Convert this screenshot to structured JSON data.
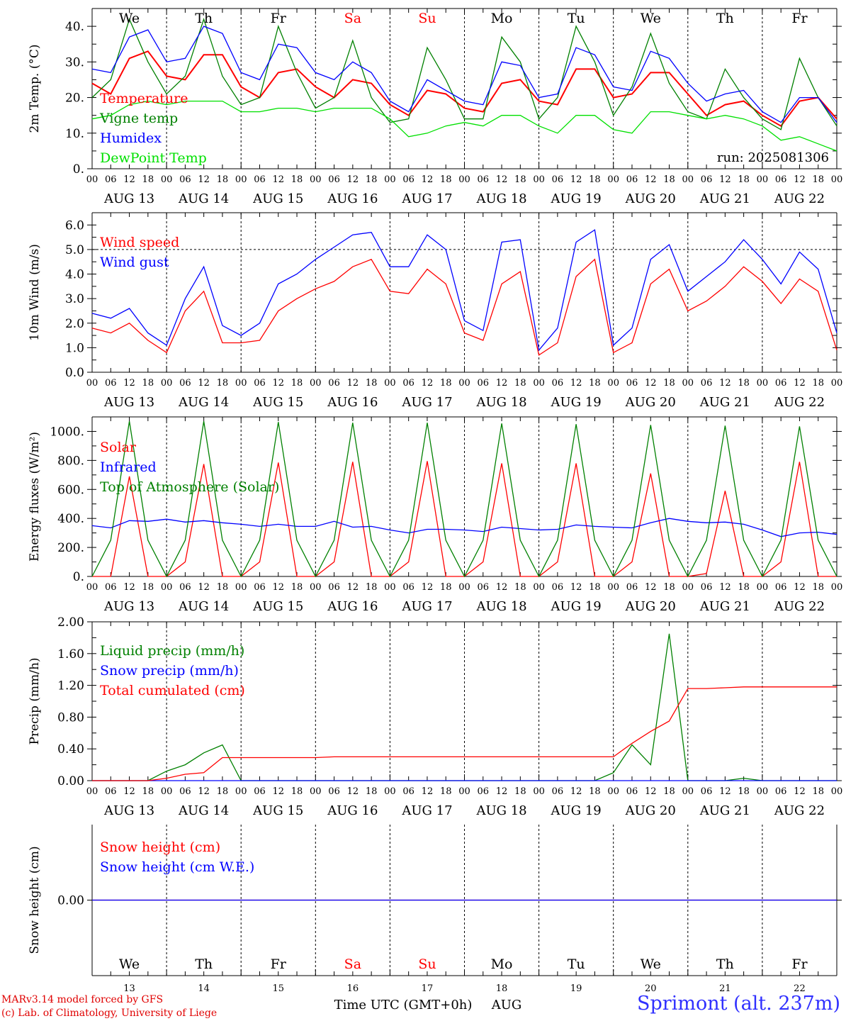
{
  "footer": {
    "model": "MARv3.14 model forced by GFS",
    "lab": "(c) Lab. of Climatology, University of Liege",
    "xtitle": "Time UTC (GMT+0h)",
    "month": "AUG",
    "station": "Sprimont (alt. 237m)"
  },
  "colors": {
    "red": "#ff0000",
    "green": "#008000",
    "blue": "#0000ff",
    "lime": "#00e000",
    "grid": "#000000"
  },
  "chart_data": [
    {
      "type": "line",
      "ylabel": "2m Temp. (°C)",
      "ylim": [
        0,
        45
      ],
      "yticks": [
        "0.",
        "10.",
        "20.",
        "30.",
        "40."
      ],
      "ytick_values": [
        0,
        10,
        20,
        30,
        40
      ],
      "annotation": "run: 2025081306",
      "day_names": [
        "We",
        "Th",
        "Fr",
        "Sa",
        "Su",
        "Mo",
        "Tu",
        "We",
        "Th",
        "Fr"
      ],
      "day_name_colors": [
        "#000000",
        "#000000",
        "#000000",
        "#ff0000",
        "#ff0000",
        "#000000",
        "#000000",
        "#000000",
        "#000000",
        "#000000"
      ],
      "x_hours": [
        0,
        6,
        12,
        18,
        24,
        30,
        36,
        42,
        48,
        54,
        60,
        66,
        72,
        78,
        84,
        90,
        96,
        102,
        108,
        114,
        120,
        126,
        132,
        138,
        144,
        150,
        156,
        162,
        168,
        174,
        180,
        186,
        192,
        198,
        204,
        210,
        216,
        222,
        228,
        234,
        240
      ],
      "series": [
        {
          "name": "Temperature",
          "color": "#ff0000",
          "values": [
            24,
            21,
            31,
            33,
            26,
            25,
            32,
            32,
            23,
            20,
            27,
            28,
            23,
            20,
            25,
            24,
            18,
            15,
            22,
            21,
            17,
            16,
            24,
            25,
            19,
            18,
            28,
            28,
            20,
            21,
            27,
            27,
            21,
            15,
            18,
            19,
            15,
            12,
            19,
            20,
            14
          ]
        },
        {
          "name": "Vigne temp",
          "color": "#008000",
          "values": [
            20,
            25,
            42,
            30,
            21,
            26,
            42,
            26,
            18,
            20,
            40,
            27,
            17,
            20,
            36,
            20,
            13,
            14,
            34,
            25,
            14,
            14,
            37,
            30,
            14,
            20,
            40,
            30,
            15,
            23,
            38,
            24,
            16,
            14,
            28,
            20,
            14,
            11,
            31,
            20,
            12
          ]
        },
        {
          "name": "Humidex",
          "color": "#0000ff",
          "values": [
            28,
            27,
            37,
            39,
            30,
            31,
            40,
            38,
            27,
            25,
            35,
            34,
            27,
            25,
            30,
            27,
            19,
            16,
            25,
            22,
            19,
            18,
            30,
            29,
            20,
            21,
            34,
            32,
            23,
            22,
            33,
            31,
            24,
            19,
            21,
            22,
            16,
            13,
            20,
            20,
            13
          ]
        },
        {
          "name": "DewPoint Temp",
          "color": "#00e000",
          "values": [
            14,
            15,
            18,
            19,
            18,
            19,
            19,
            19,
            16,
            16,
            17,
            17,
            16,
            17,
            17,
            17,
            14,
            9,
            10,
            12,
            13,
            12,
            15,
            15,
            12,
            10,
            15,
            15,
            11,
            10,
            16,
            16,
            15,
            14,
            15,
            14,
            12,
            8,
            9,
            7,
            5
          ]
        }
      ]
    },
    {
      "type": "line",
      "ylabel": "10m Wind (m/s)",
      "ylim": [
        0,
        6.5
      ],
      "yticks": [
        "0.0",
        "1.0",
        "2.0",
        "3.0",
        "4.0",
        "5.0",
        "6.0"
      ],
      "ytick_values": [
        0,
        1,
        2,
        3,
        4,
        5,
        6
      ],
      "reference_line": 5.0,
      "x_hours": [
        0,
        6,
        12,
        18,
        24,
        30,
        36,
        42,
        48,
        54,
        60,
        66,
        72,
        78,
        84,
        90,
        96,
        102,
        108,
        114,
        120,
        126,
        132,
        138,
        144,
        150,
        156,
        162,
        168,
        174,
        180,
        186,
        192,
        198,
        204,
        210,
        216,
        222,
        228,
        234,
        240
      ],
      "series": [
        {
          "name": "Wind speed",
          "color": "#ff0000",
          "values": [
            1.8,
            1.6,
            2.0,
            1.3,
            0.8,
            2.5,
            3.3,
            1.2,
            1.2,
            1.3,
            2.5,
            3.0,
            3.4,
            3.7,
            4.3,
            4.6,
            3.3,
            3.2,
            4.2,
            3.6,
            1.6,
            1.3,
            3.6,
            4.1,
            0.7,
            1.2,
            3.9,
            4.6,
            0.8,
            1.2,
            3.6,
            4.2,
            2.5,
            2.9,
            3.5,
            4.3,
            3.7,
            2.8,
            3.8,
            3.3,
            0.9
          ]
        },
        {
          "name": "Wind gust",
          "color": "#0000ff",
          "values": [
            2.4,
            2.2,
            2.6,
            1.6,
            1.1,
            3.0,
            4.3,
            1.9,
            1.5,
            2.0,
            3.6,
            4.0,
            4.6,
            5.1,
            5.6,
            5.7,
            4.3,
            4.3,
            5.6,
            5.0,
            2.1,
            1.7,
            5.3,
            5.4,
            0.9,
            1.8,
            5.3,
            5.8,
            1.1,
            1.8,
            4.6,
            5.2,
            3.3,
            3.9,
            4.5,
            5.4,
            4.6,
            3.6,
            4.9,
            4.2,
            1.6
          ]
        }
      ]
    },
    {
      "type": "line",
      "ylabel": "Energy fluxes (W/m²)",
      "ylim": [
        0,
        1100
      ],
      "yticks": [
        "0.",
        "200.",
        "400.",
        "600.",
        "800.",
        "1000."
      ],
      "ytick_values": [
        0,
        200,
        400,
        600,
        800,
        1000
      ],
      "x_hours": [
        0,
        6,
        12,
        18,
        24,
        30,
        36,
        42,
        48,
        54,
        60,
        66,
        72,
        78,
        84,
        90,
        96,
        102,
        108,
        114,
        120,
        126,
        132,
        138,
        144,
        150,
        156,
        162,
        168,
        174,
        180,
        186,
        192,
        198,
        204,
        210,
        216,
        222,
        228,
        234,
        240
      ],
      "series": [
        {
          "name": "Solar",
          "color": "#ff0000",
          "values": [
            0,
            0,
            690,
            0,
            0,
            100,
            775,
            0,
            0,
            100,
            785,
            0,
            0,
            100,
            790,
            0,
            0,
            100,
            795,
            0,
            0,
            100,
            780,
            0,
            0,
            100,
            780,
            0,
            0,
            100,
            710,
            0,
            0,
            20,
            590,
            0,
            0,
            100,
            790,
            0,
            0
          ]
        },
        {
          "name": "Infrared",
          "color": "#0000ff",
          "values": [
            350,
            335,
            385,
            380,
            395,
            375,
            385,
            370,
            360,
            345,
            360,
            345,
            345,
            380,
            340,
            345,
            320,
            300,
            325,
            325,
            320,
            310,
            340,
            330,
            320,
            325,
            355,
            345,
            340,
            335,
            370,
            400,
            380,
            370,
            375,
            360,
            320,
            275,
            300,
            305,
            290
          ]
        },
        {
          "name": "Top of Atmosphere (Solar)",
          "color": "#008000",
          "values": [
            0,
            250,
            1070,
            250,
            0,
            250,
            1070,
            250,
            0,
            250,
            1065,
            250,
            0,
            250,
            1060,
            250,
            0,
            250,
            1060,
            250,
            0,
            250,
            1055,
            250,
            0,
            250,
            1050,
            250,
            0,
            250,
            1045,
            250,
            0,
            250,
            1040,
            250,
            0,
            250,
            1035,
            250,
            0
          ]
        }
      ]
    },
    {
      "type": "line",
      "ylabel": "Precip (mm/h)",
      "ylim": [
        0,
        2.0
      ],
      "yticks": [
        "0.00",
        "0.40",
        "0.80",
        "1.20",
        "1.60",
        "2.00"
      ],
      "ytick_values": [
        0,
        0.4,
        0.8,
        1.2,
        1.6,
        2.0
      ],
      "x_hours": [
        0,
        6,
        12,
        18,
        24,
        30,
        36,
        42,
        48,
        54,
        60,
        66,
        72,
        78,
        84,
        90,
        96,
        102,
        108,
        114,
        120,
        126,
        132,
        138,
        144,
        150,
        156,
        162,
        168,
        174,
        180,
        186,
        192,
        198,
        204,
        210,
        216,
        222,
        228,
        234,
        240
      ],
      "series": [
        {
          "name": "Liquid precip (mm/h)",
          "color": "#008000",
          "values": [
            0,
            0,
            0,
            0,
            0.12,
            0.2,
            0.35,
            0.45,
            0,
            0,
            0,
            0,
            0,
            0,
            0,
            0,
            0,
            0,
            0,
            0,
            0,
            0,
            0,
            0,
            0,
            0,
            0,
            0,
            0.1,
            0.45,
            0.2,
            1.85,
            0,
            0,
            0,
            0.03,
            0,
            0,
            0,
            0,
            0
          ]
        },
        {
          "name": "Snow precip (mm/h)",
          "color": "#0000ff",
          "values": [
            0,
            0,
            0,
            0,
            0,
            0,
            0,
            0,
            0,
            0,
            0,
            0,
            0,
            0,
            0,
            0,
            0,
            0,
            0,
            0,
            0,
            0,
            0,
            0,
            0,
            0,
            0,
            0,
            0,
            0,
            0,
            0,
            0,
            0,
            0,
            0,
            0,
            0,
            0,
            0,
            0
          ]
        },
        {
          "name": "Total cumulated (cm)",
          "color": "#ff0000",
          "values": [
            0,
            0,
            0,
            0,
            0.03,
            0.08,
            0.1,
            0.29,
            0.29,
            0.29,
            0.29,
            0.29,
            0.29,
            0.3,
            0.3,
            0.3,
            0.3,
            0.3,
            0.3,
            0.3,
            0.3,
            0.3,
            0.3,
            0.3,
            0.3,
            0.3,
            0.3,
            0.3,
            0.3,
            0.47,
            0.62,
            0.75,
            1.16,
            1.16,
            1.17,
            1.18,
            1.18,
            1.18,
            1.18,
            1.18,
            1.18
          ]
        }
      ]
    },
    {
      "type": "line",
      "ylabel": "Snow height (cm)",
      "ylim": [
        -1,
        1
      ],
      "yticks": [
        "0.00"
      ],
      "ytick_values": [
        0
      ],
      "x_hours": [
        0,
        240
      ],
      "series": [
        {
          "name": "Snow height (cm)",
          "color": "#ff0000",
          "values": [
            0,
            0
          ]
        },
        {
          "name": "Snow height (cm W.E.)",
          "color": "#0000ff",
          "values": [
            0,
            0
          ]
        }
      ],
      "day_names": [
        "We",
        "Th",
        "Fr",
        "Sa",
        "Su",
        "Mo",
        "Tu",
        "We",
        "Th",
        "Fr"
      ],
      "day_name_colors": [
        "#000000",
        "#000000",
        "#000000",
        "#ff0000",
        "#ff0000",
        "#000000",
        "#000000",
        "#000000",
        "#000000",
        "#000000"
      ],
      "day_numbers": [
        "13",
        "14",
        "15",
        "16",
        "17",
        "18",
        "19",
        "20",
        "21",
        "22"
      ]
    }
  ],
  "x_axis": {
    "hour_ticks": [
      "00",
      "06",
      "12",
      "18"
    ],
    "end_tick": "00",
    "dates": [
      "AUG 13",
      "AUG 14",
      "AUG 15",
      "AUG 16",
      "AUG 17",
      "AUG 18",
      "AUG 19",
      "AUG 20",
      "AUG 21",
      "AUG 22"
    ],
    "range_hours": [
      0,
      240
    ]
  }
}
